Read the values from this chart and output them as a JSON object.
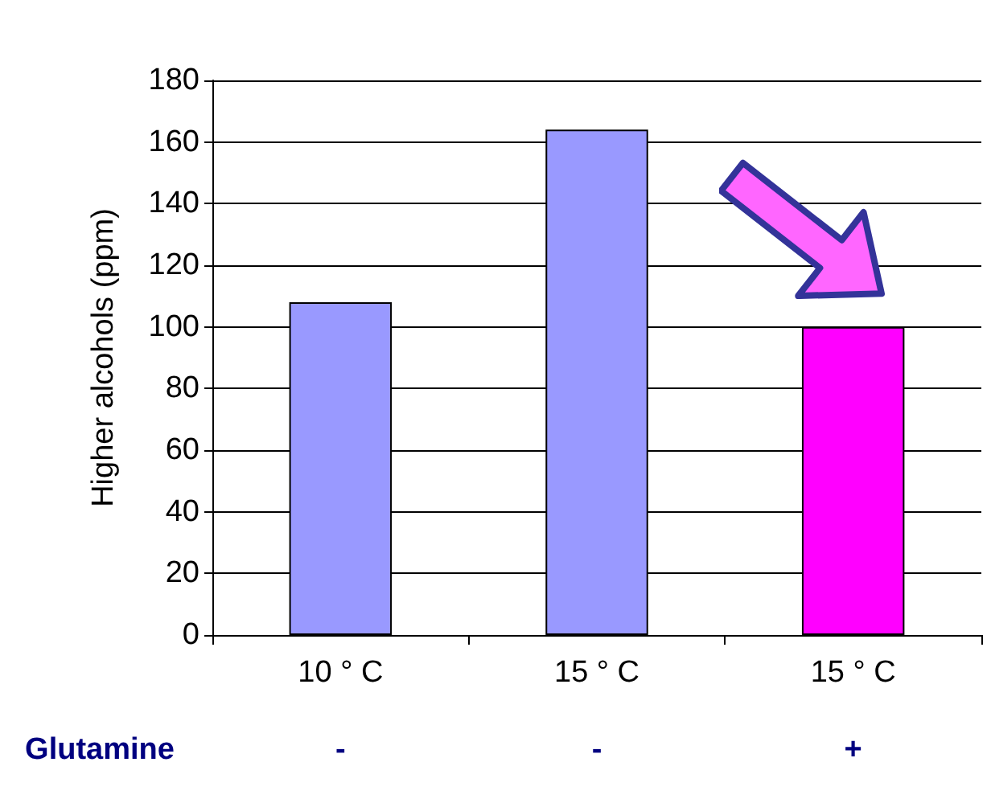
{
  "chart_data": {
    "type": "bar",
    "ylabel": "Higher alcohols (ppm)",
    "categories": [
      "10 ° C",
      "15 ° C",
      "15 ° C"
    ],
    "values": [
      108,
      164,
      100
    ],
    "colors": [
      "#9999ff",
      "#9999ff",
      "#ff00ff"
    ],
    "ylim": [
      0,
      180
    ],
    "yticks": [
      0,
      20,
      40,
      60,
      80,
      100,
      120,
      140,
      160,
      180
    ],
    "grid": "y",
    "annotations": [
      "Glutamine",
      "-",
      "-",
      "+"
    ]
  }
}
